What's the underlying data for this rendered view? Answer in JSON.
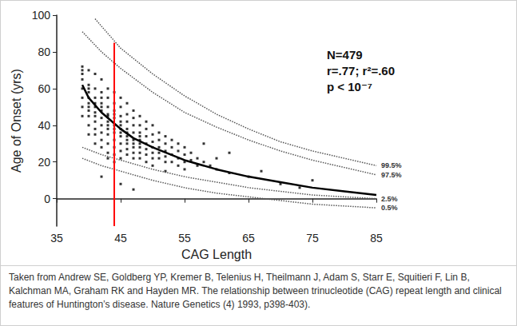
{
  "chart_data": {
    "type": "scatter",
    "x_label": "CAG Length",
    "y_label": "Age of Onset (yrs)",
    "annotations": [
      "N=479",
      "r=.77; r²=.60",
      "p < 10⁻⁷"
    ],
    "caption": "Taken from Andrew SE, Goldberg YP, Kremer B, Telenius H, Theilmann J, Adam S, Starr E, Squitieri F, Lin B, Kalchman MA, Graham RK and Hayden MR. The relationship between trinucleotide (CAG) repeat length and clinical features of Huntington’s disease. Nature Genetics (4) 1993, p398-403).",
    "xlim": [
      35,
      85
    ],
    "xticks": [
      35,
      45,
      55,
      65,
      75,
      85
    ],
    "ylim": [
      -15,
      100
    ],
    "yticks": [
      0,
      20,
      40,
      60,
      80,
      100
    ],
    "grid": false,
    "series": [
      {
        "type": "scatter",
        "color": "#000000",
        "marker": "square",
        "x": [
          39,
          39,
          39,
          39,
          39,
          39,
          39,
          39,
          40,
          40,
          40,
          40,
          40,
          40,
          40,
          40,
          40,
          40,
          40,
          41,
          41,
          41,
          41,
          41,
          41,
          41,
          41,
          41,
          41,
          41,
          42,
          42,
          42,
          42,
          42,
          42,
          42,
          42,
          42,
          42,
          42,
          42,
          43,
          43,
          43,
          43,
          43,
          43,
          43,
          43,
          43,
          43,
          43,
          43,
          44,
          44,
          44,
          44,
          44,
          44,
          44,
          44,
          44,
          44,
          44,
          44,
          45,
          45,
          45,
          45,
          45,
          45,
          45,
          45,
          45,
          45,
          45,
          45,
          46,
          46,
          46,
          46,
          46,
          46,
          46,
          46,
          46,
          46,
          47,
          47,
          47,
          47,
          47,
          47,
          47,
          47,
          47,
          47,
          48,
          48,
          48,
          48,
          48,
          48,
          48,
          48,
          48,
          49,
          49,
          49,
          49,
          49,
          49,
          49,
          50,
          50,
          50,
          50,
          50,
          50,
          50,
          51,
          51,
          51,
          51,
          51,
          52,
          52,
          52,
          52,
          52,
          52,
          53,
          53,
          53,
          53,
          54,
          54,
          54,
          54,
          55,
          55,
          55,
          55,
          56,
          56,
          57,
          57,
          58,
          58,
          59,
          60,
          60,
          62,
          62,
          65,
          67,
          70,
          73,
          75
        ],
        "values": [
          72,
          68,
          65,
          60,
          55,
          50,
          45,
          70,
          70,
          62,
          58,
          55,
          50,
          48,
          45,
          40,
          35,
          60,
          52,
          68,
          60,
          55,
          50,
          45,
          42,
          38,
          35,
          30,
          52,
          47,
          65,
          58,
          52,
          48,
          44,
          40,
          36,
          32,
          28,
          55,
          50,
          12,
          60,
          55,
          50,
          46,
          42,
          38,
          35,
          30,
          25,
          45,
          40,
          22,
          58,
          52,
          48,
          44,
          40,
          36,
          32,
          28,
          24,
          46,
          38,
          20,
          55,
          50,
          45,
          42,
          38,
          34,
          30,
          26,
          22,
          40,
          36,
          8,
          52,
          46,
          42,
          38,
          34,
          30,
          27,
          24,
          36,
          32,
          48,
          44,
          40,
          36,
          32,
          28,
          25,
          22,
          30,
          5,
          45,
          40,
          36,
          32,
          28,
          25,
          22,
          34,
          30,
          42,
          38,
          34,
          30,
          27,
          24,
          20,
          40,
          35,
          31,
          28,
          25,
          22,
          18,
          36,
          32,
          28,
          25,
          22,
          34,
          30,
          26,
          23,
          20,
          15,
          32,
          28,
          24,
          20,
          30,
          26,
          22,
          18,
          28,
          24,
          20,
          16,
          25,
          21,
          22,
          18,
          30,
          20,
          18,
          22,
          16,
          25,
          14,
          12,
          15,
          8,
          6,
          10
        ]
      },
      {
        "type": "line",
        "color": "#000000",
        "line_style": "solid",
        "x": [
          39,
          40,
          42,
          44,
          45,
          47,
          50,
          55,
          60,
          65,
          70,
          75,
          80,
          85
        ],
        "values": [
          62,
          55,
          47,
          41,
          38,
          33,
          28,
          21,
          16,
          12,
          9,
          6,
          4,
          2
        ]
      },
      {
        "type": "line",
        "name": "99.5%",
        "color": "#555555",
        "line_style": "dotted",
        "x": [
          41,
          45,
          50,
          55,
          60,
          65,
          70,
          75,
          80,
          85
        ],
        "values": [
          98,
          82,
          68,
          56,
          46,
          38,
          31,
          26,
          22,
          18
        ]
      },
      {
        "type": "line",
        "name": "97.5%",
        "color": "#555555",
        "line_style": "dotted",
        "x": [
          39,
          42,
          45,
          50,
          55,
          60,
          65,
          70,
          75,
          80,
          85
        ],
        "values": [
          91,
          80,
          71,
          58,
          47,
          39,
          32,
          26,
          21,
          17,
          13
        ]
      },
      {
        "type": "line",
        "name": "2.5%",
        "color": "#555555",
        "line_style": "dotted",
        "x": [
          39,
          42,
          45,
          50,
          55,
          60,
          65,
          70,
          75,
          80,
          85
        ],
        "values": [
          28,
          24,
          21,
          16,
          12,
          9,
          6,
          4,
          2,
          1,
          0
        ]
      },
      {
        "type": "line",
        "name": "0.5%",
        "color": "#555555",
        "line_style": "dotted",
        "x": [
          39,
          42,
          45,
          50,
          55,
          60,
          65,
          70,
          75,
          80,
          85
        ],
        "values": [
          22,
          18,
          15,
          10,
          6,
          3,
          1,
          -1,
          -3,
          -4,
          -5
        ]
      },
      {
        "type": "line",
        "color": "#ff0000",
        "line_style": "solid",
        "x": [
          44,
          44
        ],
        "values": [
          -15,
          85
        ]
      }
    ]
  }
}
